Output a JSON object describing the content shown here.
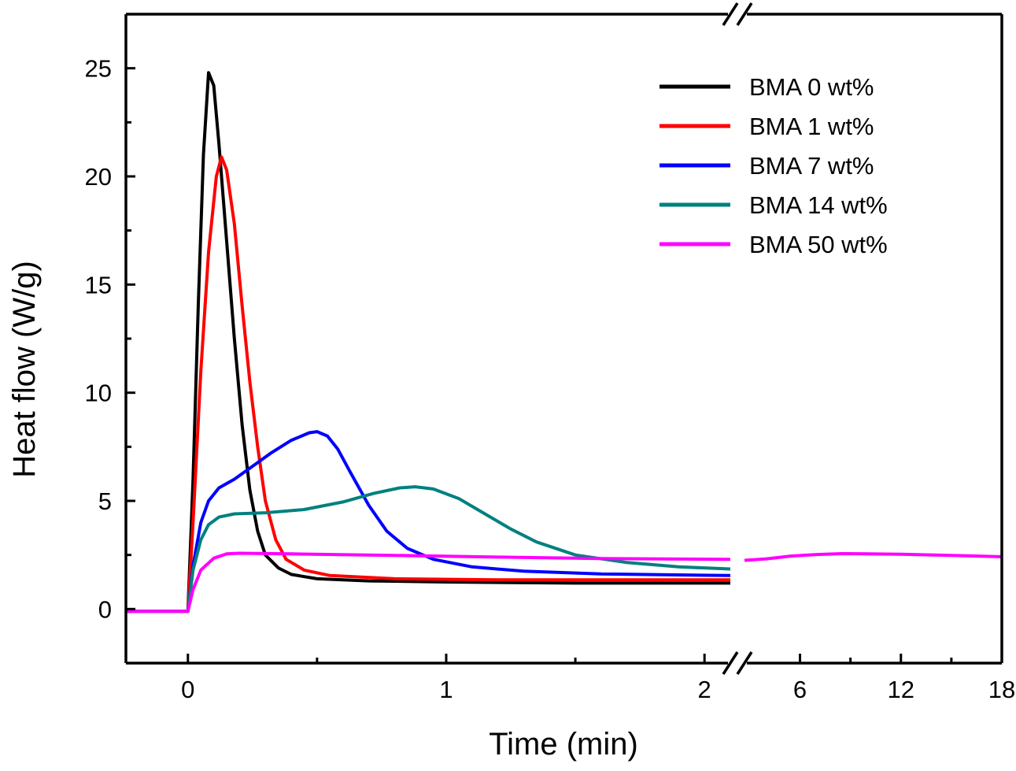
{
  "chart_data": {
    "type": "line",
    "xlabel": "Time (min)",
    "ylabel": "Heat flow (W/g)",
    "ylim": [
      -2.5,
      27.5
    ],
    "x_axis": {
      "broken": true,
      "left_segment": {
        "range": [
          -0.24,
          2.1
        ],
        "ticks": [
          0,
          1,
          2
        ],
        "minor": [
          0.5,
          1.5
        ]
      },
      "right_segment": {
        "range": [
          2.7,
          18
        ],
        "ticks": [
          6,
          12,
          18
        ],
        "minor": [
          9,
          15
        ]
      }
    },
    "y_ticks": [
      0,
      5,
      10,
      15,
      20,
      25
    ],
    "legend": {
      "placement": "top-right"
    },
    "series": [
      {
        "name": "BMA 0 wt%",
        "color": "#000000",
        "points_left": [
          [
            -0.24,
            -0.1
          ],
          [
            0,
            -0.1
          ],
          [
            0.02,
            6
          ],
          [
            0.04,
            14
          ],
          [
            0.06,
            21
          ],
          [
            0.08,
            24.8
          ],
          [
            0.1,
            24.2
          ],
          [
            0.12,
            21.5
          ],
          [
            0.15,
            17
          ],
          [
            0.18,
            12.5
          ],
          [
            0.21,
            8.5
          ],
          [
            0.24,
            5.5
          ],
          [
            0.27,
            3.6
          ],
          [
            0.3,
            2.5
          ],
          [
            0.35,
            1.9
          ],
          [
            0.4,
            1.6
          ],
          [
            0.5,
            1.4
          ],
          [
            0.7,
            1.3
          ],
          [
            1,
            1.25
          ],
          [
            1.5,
            1.2
          ],
          [
            2.1,
            1.2
          ]
        ],
        "points_right": []
      },
      {
        "name": "BMA 1 wt%",
        "color": "#ff0000",
        "points_left": [
          [
            -0.24,
            -0.1
          ],
          [
            0,
            -0.1
          ],
          [
            0.02,
            4
          ],
          [
            0.05,
            11
          ],
          [
            0.08,
            16.5
          ],
          [
            0.11,
            20
          ],
          [
            0.13,
            20.9
          ],
          [
            0.15,
            20.3
          ],
          [
            0.18,
            17.8
          ],
          [
            0.21,
            14
          ],
          [
            0.24,
            10.5
          ],
          [
            0.27,
            7.5
          ],
          [
            0.3,
            5
          ],
          [
            0.34,
            3.2
          ],
          [
            0.38,
            2.3
          ],
          [
            0.45,
            1.8
          ],
          [
            0.55,
            1.55
          ],
          [
            0.8,
            1.4
          ],
          [
            1.2,
            1.35
          ],
          [
            1.6,
            1.35
          ],
          [
            2.1,
            1.35
          ]
        ],
        "points_right": []
      },
      {
        "name": "BMA 7 wt%",
        "color": "#0000ff",
        "points_left": [
          [
            -0.24,
            -0.1
          ],
          [
            0,
            -0.1
          ],
          [
            0.02,
            2
          ],
          [
            0.05,
            4
          ],
          [
            0.08,
            5
          ],
          [
            0.12,
            5.6
          ],
          [
            0.18,
            6
          ],
          [
            0.25,
            6.6
          ],
          [
            0.32,
            7.2
          ],
          [
            0.4,
            7.8
          ],
          [
            0.47,
            8.15
          ],
          [
            0.5,
            8.2
          ],
          [
            0.54,
            8
          ],
          [
            0.58,
            7.4
          ],
          [
            0.63,
            6.3
          ],
          [
            0.7,
            4.8
          ],
          [
            0.77,
            3.6
          ],
          [
            0.85,
            2.8
          ],
          [
            0.95,
            2.3
          ],
          [
            1.1,
            1.95
          ],
          [
            1.3,
            1.75
          ],
          [
            1.6,
            1.62
          ],
          [
            2.1,
            1.55
          ]
        ],
        "points_right": []
      },
      {
        "name": "BMA 14 wt%",
        "color": "#008080",
        "points_left": [
          [
            -0.24,
            -0.1
          ],
          [
            0,
            -0.1
          ],
          [
            0.02,
            1.8
          ],
          [
            0.05,
            3.2
          ],
          [
            0.08,
            3.9
          ],
          [
            0.12,
            4.25
          ],
          [
            0.18,
            4.4
          ],
          [
            0.3,
            4.45
          ],
          [
            0.45,
            4.6
          ],
          [
            0.6,
            4.95
          ],
          [
            0.72,
            5.35
          ],
          [
            0.82,
            5.6
          ],
          [
            0.88,
            5.65
          ],
          [
            0.95,
            5.55
          ],
          [
            1.05,
            5.1
          ],
          [
            1.15,
            4.4
          ],
          [
            1.25,
            3.7
          ],
          [
            1.35,
            3.1
          ],
          [
            1.5,
            2.5
          ],
          [
            1.7,
            2.15
          ],
          [
            1.9,
            1.95
          ],
          [
            2.1,
            1.85
          ]
        ],
        "points_right": []
      },
      {
        "name": "BMA 50 wt%",
        "color": "#ff00ff",
        "points_left": [
          [
            -0.24,
            -0.1
          ],
          [
            0,
            -0.1
          ],
          [
            0.02,
            0.9
          ],
          [
            0.05,
            1.8
          ],
          [
            0.1,
            2.35
          ],
          [
            0.15,
            2.55
          ],
          [
            0.2,
            2.58
          ],
          [
            0.4,
            2.55
          ],
          [
            0.8,
            2.48
          ],
          [
            1.2,
            2.4
          ],
          [
            1.6,
            2.33
          ],
          [
            2.1,
            2.3
          ]
        ],
        "points_right": [
          [
            2.7,
            2.25
          ],
          [
            4,
            2.32
          ],
          [
            5.5,
            2.45
          ],
          [
            7,
            2.52
          ],
          [
            8.5,
            2.56
          ],
          [
            10,
            2.55
          ],
          [
            12,
            2.53
          ],
          [
            14,
            2.5
          ],
          [
            16,
            2.46
          ],
          [
            18,
            2.42
          ]
        ]
      }
    ]
  }
}
